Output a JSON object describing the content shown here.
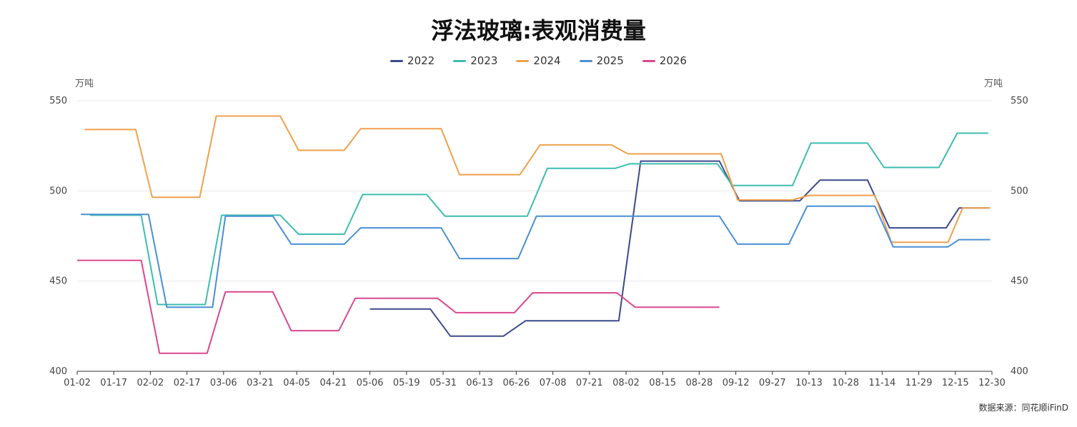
{
  "chart_data": {
    "type": "line",
    "title": "浮法玻璃:表观消费量",
    "y_unit_left": "万吨",
    "y_unit_right": "万吨",
    "source": "数据来源：同花顺iFinD",
    "ylim": [
      400,
      550
    ],
    "yticks": [
      "400",
      "450",
      "500",
      "550"
    ],
    "x_tick_labels": [
      "01-02",
      "01-17",
      "02-02",
      "02-17",
      "03-06",
      "03-21",
      "04-05",
      "04-21",
      "05-06",
      "05-19",
      "05-31",
      "06-13",
      "06-26",
      "07-08",
      "07-21",
      "08-02",
      "08-15",
      "08-28",
      "09-12",
      "09-27",
      "10-13",
      "10-28",
      "11-14",
      "11-29",
      "12-15",
      "12-30"
    ],
    "x_range": [
      0,
      25
    ],
    "legend_position": "top-center",
    "grid": true,
    "series": [
      {
        "name": "2022",
        "color": "#3c4a8c",
        "points": [
          [
            8,
            434.5
          ],
          [
            9.65,
            434.5
          ],
          [
            10.2,
            419.5
          ],
          [
            11.65,
            419.5
          ],
          [
            12.25,
            428
          ],
          [
            14.8,
            428
          ],
          [
            15.4,
            516.5
          ],
          [
            17.55,
            516.5
          ],
          [
            18.1,
            494.5
          ],
          [
            19.75,
            494.5
          ],
          [
            20.3,
            506
          ],
          [
            21.6,
            506
          ],
          [
            22.2,
            479.5
          ],
          [
            23.75,
            479.5
          ],
          [
            24.1,
            490.5
          ],
          [
            24.9,
            490.5
          ]
        ]
      },
      {
        "name": "2023",
        "color": "#3dbcb0",
        "points": [
          [
            0.35,
            486.5
          ],
          [
            1.75,
            486.5
          ],
          [
            2.2,
            437
          ],
          [
            3.5,
            437
          ],
          [
            3.95,
            486.5
          ],
          [
            5.55,
            486.5
          ],
          [
            6.05,
            476
          ],
          [
            7.3,
            476
          ],
          [
            7.8,
            498
          ],
          [
            9.55,
            498
          ],
          [
            10.05,
            486
          ],
          [
            12.3,
            486
          ],
          [
            12.85,
            512.5
          ],
          [
            14.7,
            512.5
          ],
          [
            15.1,
            515
          ],
          [
            17.5,
            515
          ],
          [
            17.9,
            503
          ],
          [
            19.55,
            503
          ],
          [
            20.05,
            526.5
          ],
          [
            21.6,
            526.5
          ],
          [
            22.05,
            513
          ],
          [
            23.55,
            513
          ],
          [
            24.05,
            532
          ],
          [
            24.9,
            532
          ]
        ]
      },
      {
        "name": "2024",
        "color": "#f0a04e",
        "points": [
          [
            0.2,
            534
          ],
          [
            1.6,
            534
          ],
          [
            2.05,
            496.5
          ],
          [
            3.35,
            496.5
          ],
          [
            3.8,
            541.5
          ],
          [
            5.55,
            541.5
          ],
          [
            6.05,
            522.5
          ],
          [
            7.3,
            522.5
          ],
          [
            7.75,
            534.5
          ],
          [
            9.95,
            534.5
          ],
          [
            10.45,
            509
          ],
          [
            12.1,
            509
          ],
          [
            12.65,
            525.5
          ],
          [
            14.6,
            525.5
          ],
          [
            15.05,
            520.5
          ],
          [
            17.6,
            520.5
          ],
          [
            18.05,
            495
          ],
          [
            19.55,
            495
          ],
          [
            20,
            497.5
          ],
          [
            21.8,
            497.5
          ],
          [
            22.25,
            471.5
          ],
          [
            23.8,
            471.5
          ],
          [
            24.2,
            490.5
          ],
          [
            24.95,
            490.5
          ]
        ]
      },
      {
        "name": "2025",
        "color": "#4a8fd4",
        "points": [
          [
            0.1,
            487
          ],
          [
            1.95,
            487
          ],
          [
            2.45,
            435.5
          ],
          [
            3.7,
            435.5
          ],
          [
            4.05,
            486
          ],
          [
            5.35,
            486
          ],
          [
            5.85,
            470.5
          ],
          [
            7.3,
            470.5
          ],
          [
            7.75,
            479.5
          ],
          [
            9.95,
            479.5
          ],
          [
            10.45,
            462.5
          ],
          [
            12.05,
            462.5
          ],
          [
            12.55,
            486
          ],
          [
            17.55,
            486
          ],
          [
            18.05,
            470.5
          ],
          [
            19.45,
            470.5
          ],
          [
            19.95,
            491.5
          ],
          [
            21.8,
            491.5
          ],
          [
            22.3,
            469
          ],
          [
            23.8,
            469
          ],
          [
            24.1,
            473
          ],
          [
            24.95,
            473
          ]
        ]
      },
      {
        "name": "2026",
        "color": "#d9488e",
        "points": [
          [
            0,
            461.5
          ],
          [
            1.75,
            461.5
          ],
          [
            2.25,
            410
          ],
          [
            3.55,
            410
          ],
          [
            4.05,
            444
          ],
          [
            5.35,
            444
          ],
          [
            5.85,
            422.5
          ],
          [
            7.15,
            422.5
          ],
          [
            7.6,
            440.5
          ],
          [
            9.85,
            440.5
          ],
          [
            10.35,
            432.5
          ],
          [
            11.95,
            432.5
          ],
          [
            12.45,
            443.5
          ],
          [
            14.75,
            443.5
          ],
          [
            15.25,
            435.5
          ],
          [
            17.55,
            435.5
          ]
        ]
      }
    ]
  }
}
